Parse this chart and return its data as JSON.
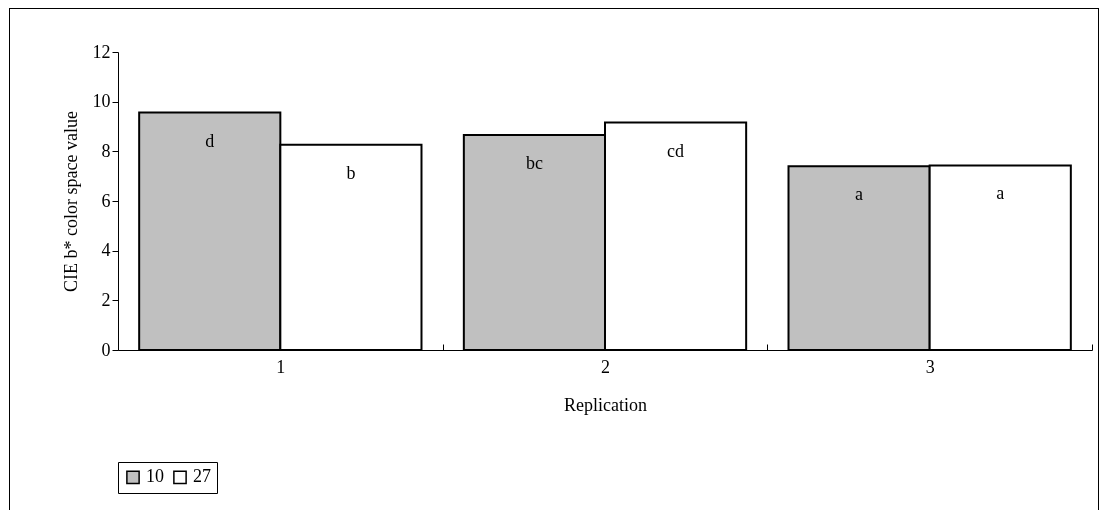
{
  "chart_data": {
    "type": "bar",
    "xlabel": "Replication",
    "ylabel": "CIE b* color space value",
    "categories": [
      "1",
      "2",
      "3"
    ],
    "series": [
      {
        "name": "10",
        "color": "#c0c0c0",
        "values": [
          9.56,
          8.66,
          7.4
        ],
        "value_labels": [
          "d",
          "bc",
          "a"
        ]
      },
      {
        "name": "27",
        "color": "#ffffff",
        "values": [
          8.27,
          9.16,
          7.43
        ],
        "value_labels": [
          "b",
          "cd",
          "a"
        ]
      }
    ],
    "ylim": [
      0,
      12
    ],
    "yticks": [
      0,
      2,
      4,
      6,
      8,
      10,
      12
    ],
    "legend": "bottom"
  }
}
